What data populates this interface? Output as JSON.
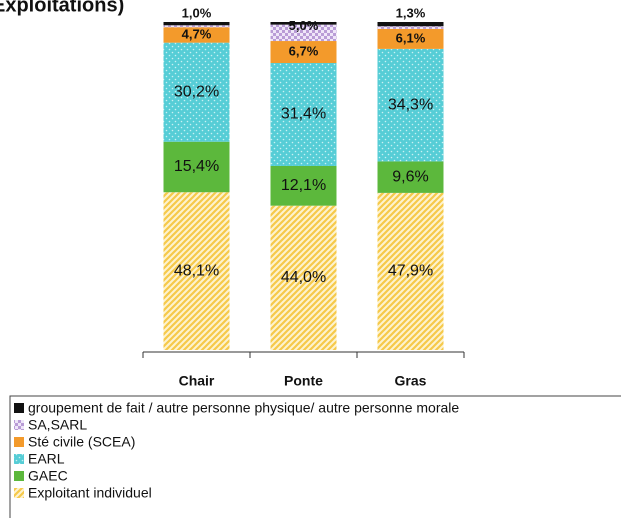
{
  "chart_data": {
    "type": "stacked_bar",
    "title": "Exploitations)",
    "categories": [
      "Chair",
      "Ponte",
      "Gras"
    ],
    "ylim": [
      0,
      100
    ],
    "series": [
      {
        "name": "Exploitant individuel",
        "color": "#f6c94a",
        "pattern": "stripes",
        "values": [
          48.1,
          44.0,
          47.9
        ],
        "value_labels": [
          "48,1%",
          "44,0%",
          "47,9%"
        ]
      },
      {
        "name": "GAEC",
        "color": "#5cb83c",
        "pattern": "solid",
        "values": [
          15.4,
          12.1,
          9.6
        ],
        "value_labels": [
          "15,4%",
          "12,1%",
          "9,6%"
        ]
      },
      {
        "name": "EARL",
        "color": "#56cdd6",
        "pattern": "dots",
        "values": [
          30.2,
          31.4,
          34.3
        ],
        "value_labels": [
          "30,2%",
          "31,4%",
          "34,3%"
        ]
      },
      {
        "name": "Sté civile (SCEA)",
        "color": "#f39a2b",
        "pattern": "solid",
        "values": [
          4.7,
          6.7,
          6.1
        ],
        "value_labels": [
          "4,7%",
          "6,7%",
          "6,1%"
        ]
      },
      {
        "name": "SA,SARL",
        "color": "#b99cd6",
        "pattern": "checker",
        "values": [
          0.6,
          5.0,
          0.8
        ],
        "value_labels": [
          null,
          "5,0%",
          null
        ]
      },
      {
        "name": "groupement de fait / autre personne physique/ autre personne morale",
        "color": "#111111",
        "pattern": "solid",
        "values": [
          1.0,
          0.8,
          1.3
        ],
        "value_labels": [
          "1,0%",
          null,
          "1,3%"
        ]
      }
    ]
  }
}
